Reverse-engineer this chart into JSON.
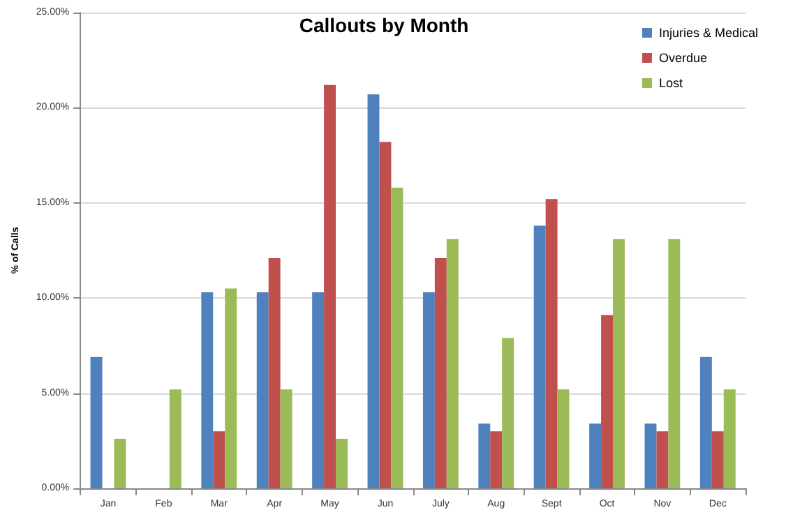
{
  "chart_data": {
    "type": "bar",
    "title": "Callouts by Month",
    "ylabel": "% of Calls",
    "categories": [
      "Jan",
      "Feb",
      "Mar",
      "Apr",
      "May",
      "Jun",
      "July",
      "Aug",
      "Sept",
      "Oct",
      "Nov",
      "Dec"
    ],
    "series": [
      {
        "name": "Injuries & Medical",
        "color": "#4f81bd",
        "values": [
          6.9,
          0,
          10.3,
          10.3,
          10.3,
          20.7,
          10.3,
          3.4,
          13.8,
          3.4,
          3.4,
          6.9
        ]
      },
      {
        "name": "Overdue",
        "color": "#c0504d",
        "values": [
          0,
          0,
          3.0,
          12.1,
          21.2,
          18.2,
          12.1,
          3.0,
          15.2,
          9.1,
          3.0,
          3.0
        ]
      },
      {
        "name": "Lost",
        "color": "#9bbb59",
        "values": [
          2.6,
          5.2,
          10.5,
          5.2,
          2.6,
          15.8,
          13.1,
          7.9,
          5.2,
          13.1,
          13.1,
          5.2
        ]
      }
    ],
    "ylim": [
      0,
      25
    ],
    "yticks": [
      {
        "value": 0,
        "label": "0.00%"
      },
      {
        "value": 5,
        "label": "5.00%"
      },
      {
        "value": 10,
        "label": "10.00%"
      },
      {
        "value": 15,
        "label": "15.00%"
      },
      {
        "value": 20,
        "label": "20.00%"
      },
      {
        "value": 25,
        "label": "25.00%"
      }
    ],
    "grid": "y",
    "legend": "top right"
  }
}
